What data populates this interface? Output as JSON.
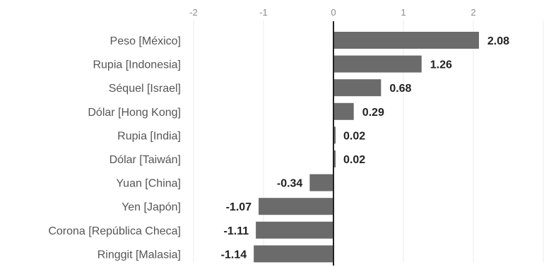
{
  "chart_data": {
    "type": "bar",
    "orientation": "horizontal",
    "title": "",
    "xlabel": "",
    "ylabel": "",
    "categories": [
      "Peso [México]",
      "Rupia [Indonesia]",
      "Séquel [Israel]",
      "Dólar [Hong Kong]",
      "Rupia [India]",
      "Dólar [Taiwán]",
      "Yuan [China]",
      "Yen [Japón]",
      "Corona [República Checa]",
      "Ringgit [Malasia]"
    ],
    "values": [
      2.08,
      1.26,
      0.68,
      0.29,
      0.02,
      0.02,
      -0.34,
      -1.07,
      -1.11,
      -1.14
    ],
    "value_labels": [
      "2.08",
      "1.26",
      "0.68",
      "0.29",
      "0.02",
      "0.02",
      "-0.34",
      "-1.07",
      "-1.11",
      "-1.14"
    ],
    "xlim": [
      -2,
      3
    ],
    "xticks": [
      -2,
      -1,
      0,
      1,
      2
    ],
    "tick_labels": [
      "-2",
      "-1",
      "0",
      "1",
      "2"
    ],
    "grid": true,
    "bar_color": "#6b6b6b",
    "axis_color": "#222222",
    "grid_color": "#eeeeee"
  }
}
